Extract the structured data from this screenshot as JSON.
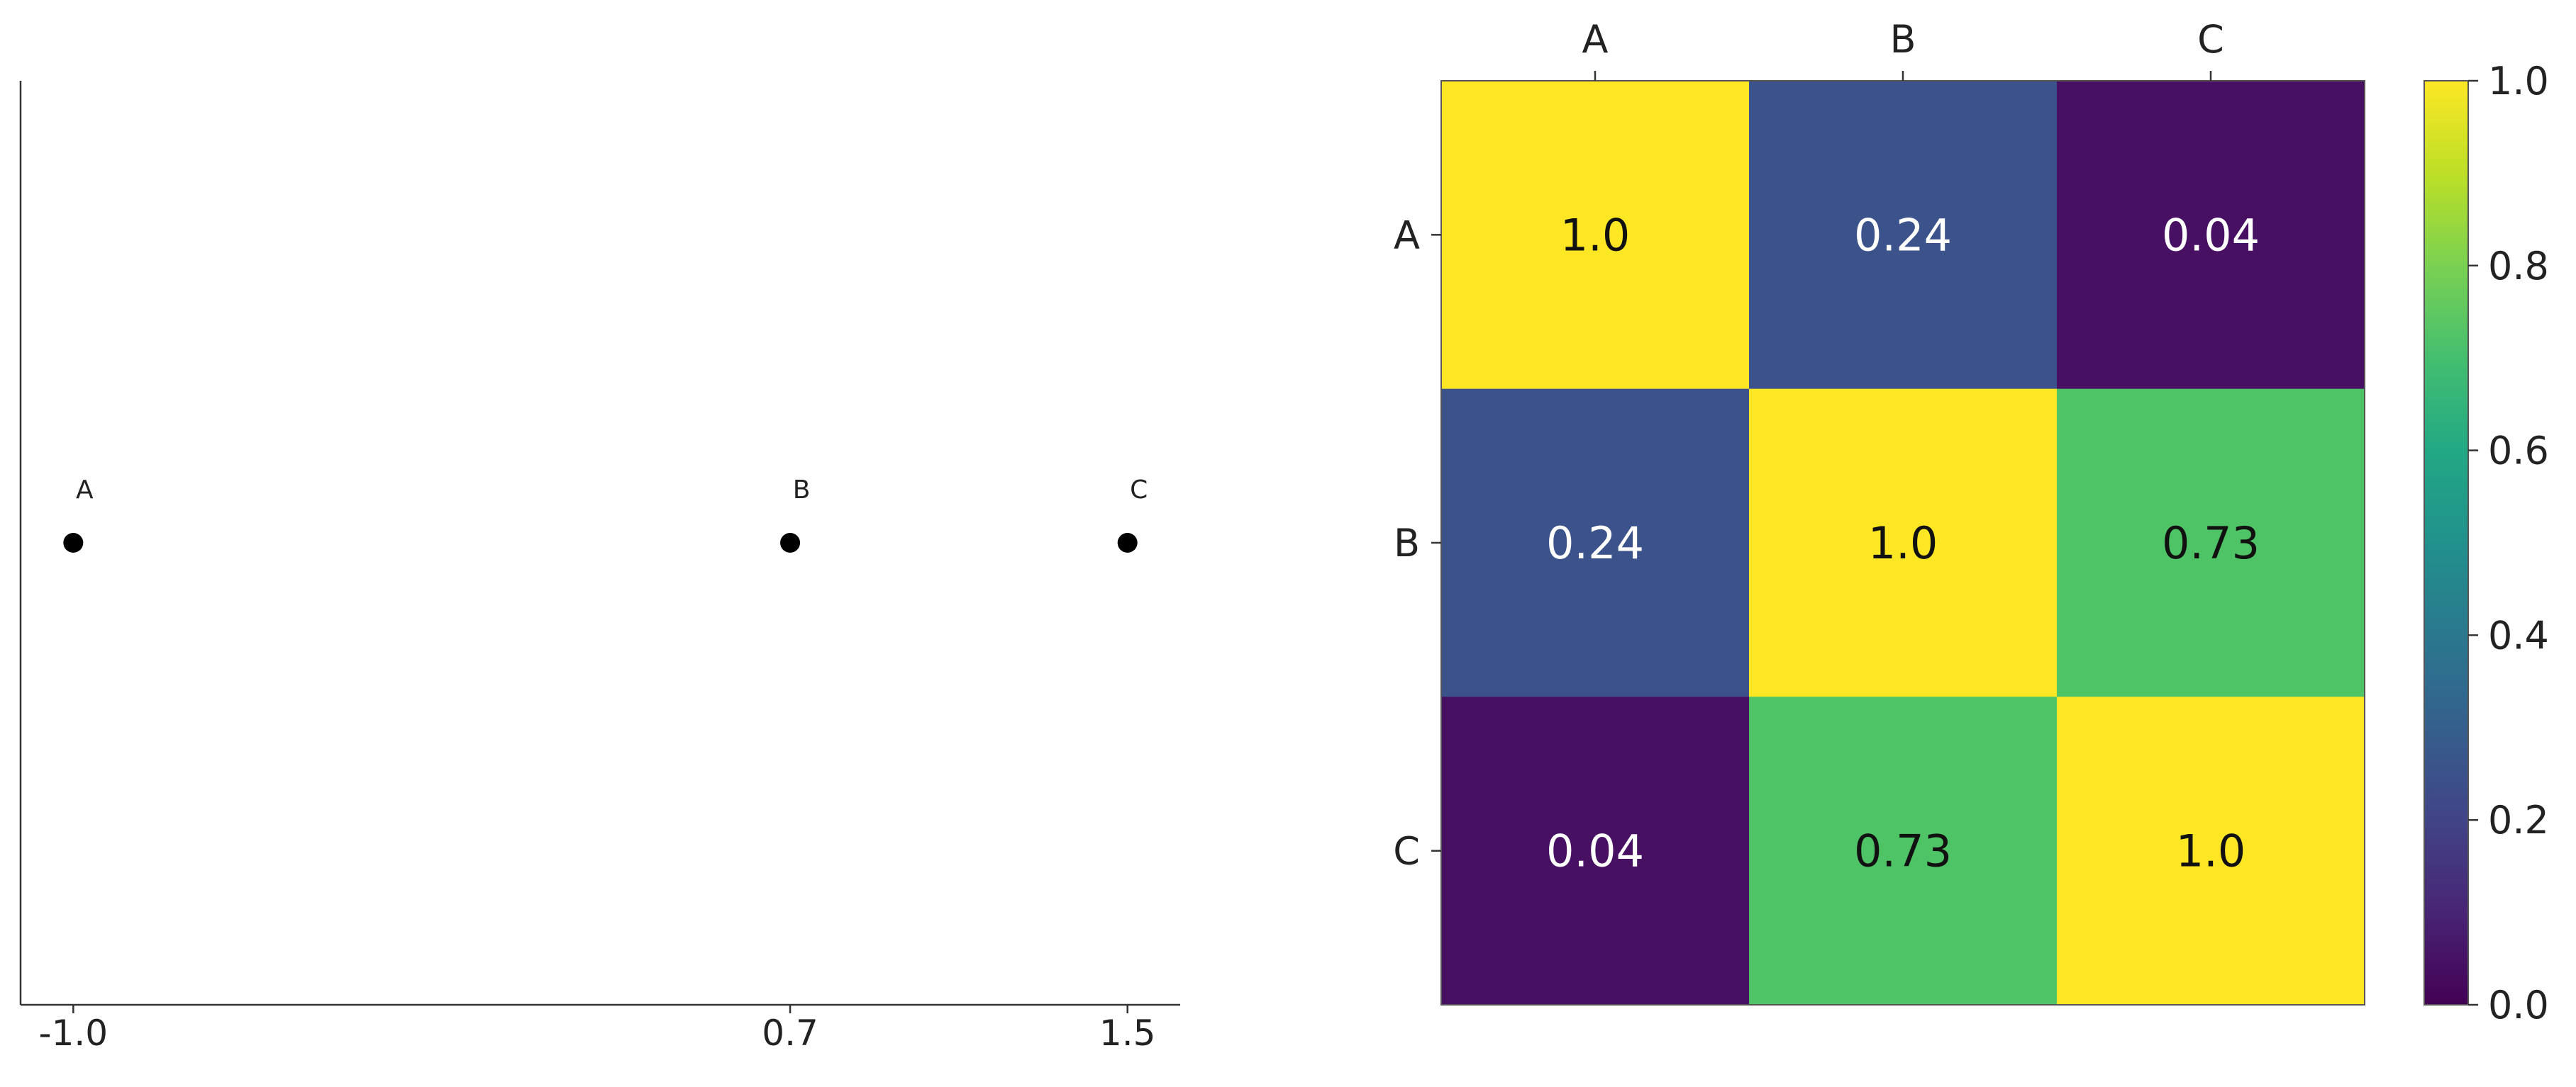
{
  "chart_data": [
    {
      "type": "scatter",
      "x": [
        -1.0,
        0.7,
        1.5
      ],
      "y": [
        0,
        0,
        0
      ],
      "point_labels": [
        "A",
        "B",
        "C"
      ],
      "xticks": [
        "-1.0",
        "0.7",
        "1.5"
      ],
      "xlim": [
        -1.125,
        1.625
      ],
      "point_color": "#000000",
      "spines": [
        "left",
        "bottom"
      ],
      "grid": false
    },
    {
      "type": "heatmap",
      "row_labels": [
        "A",
        "B",
        "C"
      ],
      "col_labels": [
        "A",
        "B",
        "C"
      ],
      "values": [
        [
          1.0,
          0.24,
          0.04
        ],
        [
          0.24,
          1.0,
          0.73
        ],
        [
          0.04,
          0.73,
          1.0
        ]
      ],
      "cell_text": [
        [
          "1.0",
          "0.24",
          "0.04"
        ],
        [
          "0.24",
          "1.0",
          "0.73"
        ],
        [
          "0.04",
          "0.73",
          "1.0"
        ]
      ],
      "colormap": "viridis",
      "vmin": 0.0,
      "vmax": 1.0,
      "colorbar_ticks": [
        "0.0",
        "0.2",
        "0.4",
        "0.6",
        "0.8",
        "1.0"
      ],
      "colors": {
        "1.0": "#fde725",
        "0.73": "#4fc466",
        "0.24": "#3b528b",
        "0.04": "#471063"
      },
      "text_color_dark": "#111111",
      "text_color_light": "#ffffff"
    }
  ]
}
